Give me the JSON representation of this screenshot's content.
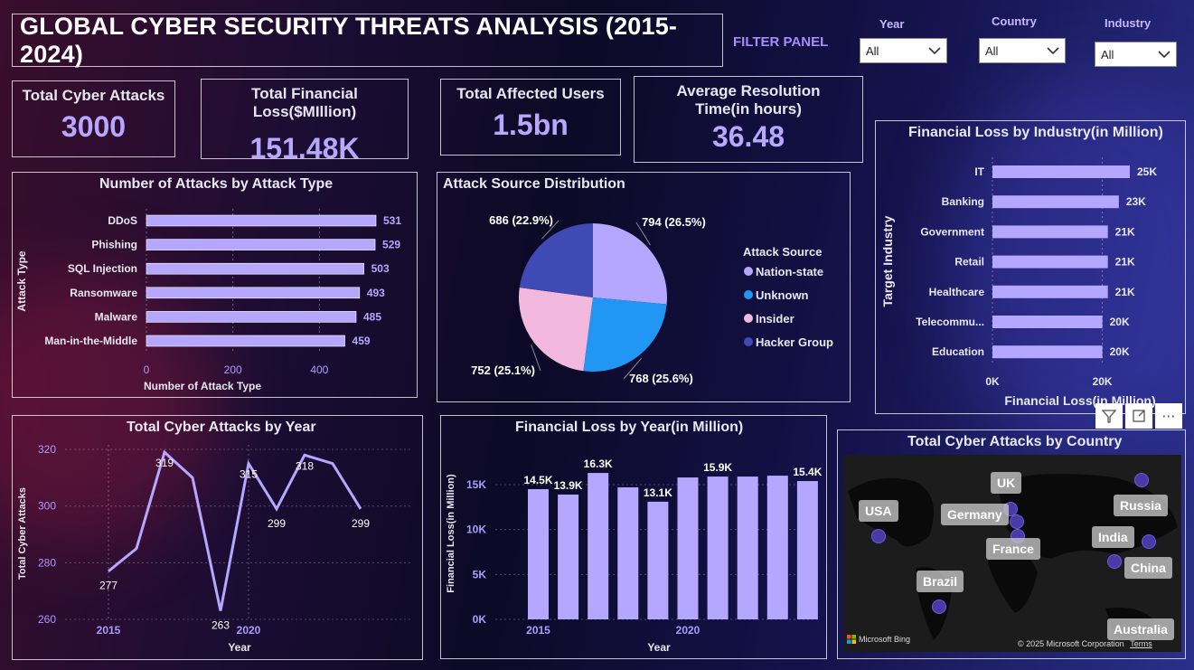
{
  "title": "GLOBAL CYBER SECURITY THREATS ANALYSIS (2015-2024)",
  "filter_panel": {
    "label": "FILTER PANEL",
    "slicers": [
      {
        "label": "Year",
        "value": "All"
      },
      {
        "label": "Country",
        "value": "All"
      },
      {
        "label": "Industry",
        "value": "All"
      }
    ]
  },
  "kpis": [
    {
      "label": "Total Cyber Attacks",
      "value": "3000"
    },
    {
      "label": "Total Financial Loss($MIllion)",
      "value": "151.48K"
    },
    {
      "label": "Total Affected Users",
      "value": "1.5bn"
    },
    {
      "label": "Average Resolution Time(in hours)",
      "value": "36.48"
    }
  ],
  "colors": {
    "accent": "#b7a7ff",
    "bar": "#b5a6ff",
    "unknown": "#2196f3",
    "insider": "#f2b8de",
    "hacker": "#3f4ab5"
  },
  "attack_type_chart": {
    "title": "Number of Attacks by Attack Type",
    "xlabel": "Number of Attack Type",
    "ylabel": "Attack Type",
    "ticks": [
      "0",
      "200",
      "400"
    ],
    "chart_data": {
      "type": "bar",
      "orientation": "horizontal",
      "categories": [
        "DDoS",
        "Phishing",
        "SQL Injection",
        "Ransomware",
        "Malware",
        "Man-in-the-Middle"
      ],
      "values": [
        531,
        529,
        503,
        493,
        485,
        459
      ],
      "xlim": [
        0,
        531
      ]
    }
  },
  "source_chart": {
    "title": "Attack Source Distribution",
    "legend_title": "Attack Source",
    "chart_data": {
      "type": "pie",
      "slices": [
        {
          "name": "Nation-state",
          "value": 794,
          "label": "794 (26.5%)",
          "color": "#b5a6ff"
        },
        {
          "name": "Unknown",
          "value": 768,
          "label": "768 (25.6%)",
          "color": "#2196f3"
        },
        {
          "name": "Insider",
          "value": 752,
          "label": "752 (25.1%)",
          "color": "#f2b8de"
        },
        {
          "name": "Hacker Group",
          "value": 686,
          "label": "686 (22.9%)",
          "color": "#3f4ab5"
        }
      ]
    }
  },
  "industry_chart": {
    "title": "Financial Loss by Industry(in Million)",
    "xlabel": "Financial Loss(in Million)",
    "ylabel": "Target Industry",
    "ticks": [
      "0K",
      "20K"
    ],
    "chart_data": {
      "type": "bar",
      "orientation": "horizontal",
      "categories": [
        "IT",
        "Banking",
        "Government",
        "Retail",
        "Healthcare",
        "Telecommu...",
        "Education"
      ],
      "values": [
        25000,
        23000,
        21000,
        21000,
        21000,
        20000,
        20000
      ],
      "labels": [
        "25K",
        "23K",
        "21K",
        "21K",
        "21K",
        "20K",
        "20K"
      ],
      "xlim": [
        0,
        25000
      ]
    }
  },
  "year_attacks_chart": {
    "title": "Total Cyber Attacks by Year",
    "xlabel": "Year",
    "ylabel": "Total Cyber Attacks",
    "yticks": [
      "260",
      "280",
      "300",
      "320"
    ],
    "xticks": [
      "2015",
      "2020"
    ],
    "chart_data": {
      "type": "line",
      "x": [
        2015,
        2016,
        2017,
        2018,
        2019,
        2020,
        2021,
        2022,
        2023,
        2024
      ],
      "values": [
        277,
        285,
        319,
        310,
        263,
        315,
        299,
        318,
        315,
        299
      ],
      "point_labels": [
        "277",
        "",
        "319",
        "",
        "263",
        "315",
        "299",
        "318",
        "",
        "299"
      ],
      "ylim": [
        260,
        320
      ]
    }
  },
  "year_loss_chart": {
    "title": "Financial Loss by Year(in Million)",
    "xlabel": "Year",
    "ylabel": "Financial Loss(in Million)",
    "yticks": [
      "0K",
      "5K",
      "10K",
      "15K"
    ],
    "xticks": [
      "2015",
      "2020"
    ],
    "chart_data": {
      "type": "bar",
      "x": [
        2015,
        2016,
        2017,
        2018,
        2019,
        2020,
        2021,
        2022,
        2023,
        2024
      ],
      "values": [
        14500,
        13900,
        16300,
        14700,
        13100,
        15800,
        15900,
        15900,
        16000,
        15400
      ],
      "labels": [
        "14.5K",
        "13.9K",
        "16.3K",
        "",
        "13.1K",
        "",
        "15.9K",
        "",
        "",
        "15.4K"
      ],
      "ylim": [
        0,
        17000
      ]
    }
  },
  "map_chart": {
    "title": "Total Cyber Attacks by Country",
    "countries": [
      "USA",
      "UK",
      "Germany",
      "Russia",
      "India",
      "France",
      "China",
      "Brazil",
      "Australia"
    ],
    "attribution": "© 2025 Microsoft Corporation",
    "terms": "Terms",
    "brand": "Microsoft Bing"
  }
}
